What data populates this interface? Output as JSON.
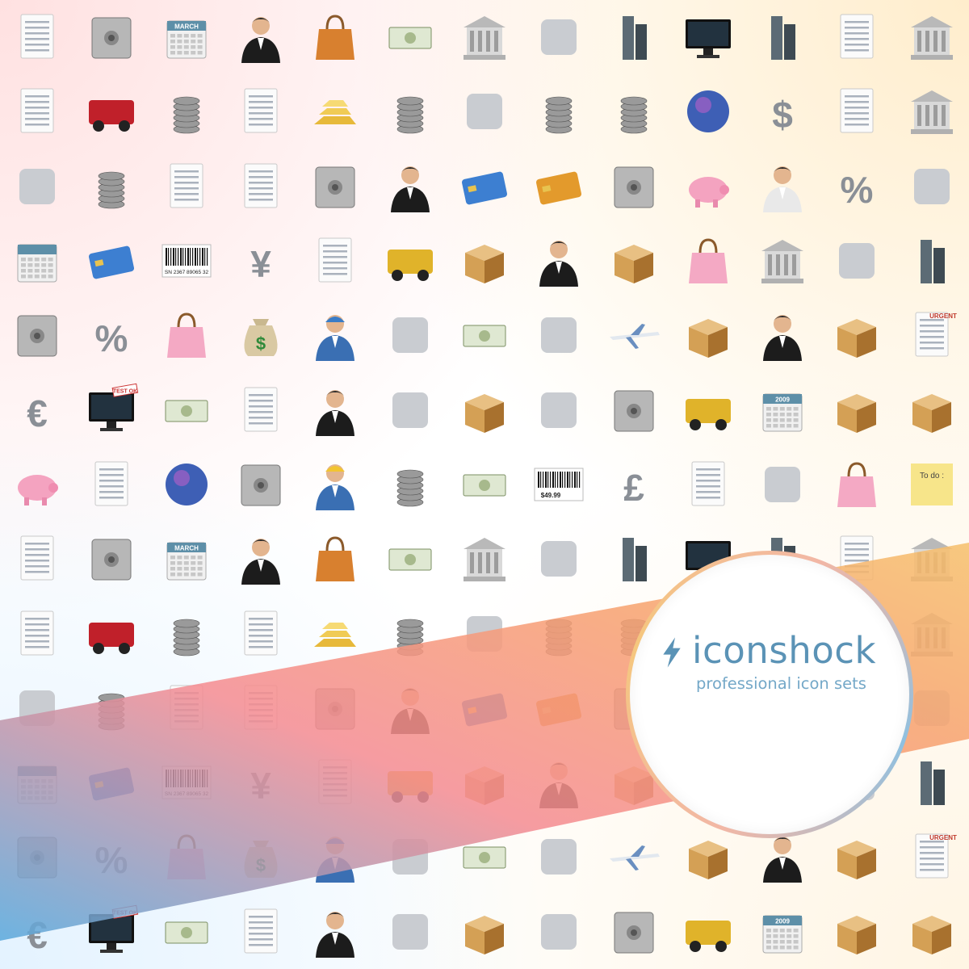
{
  "brand": {
    "name": "iconshock",
    "tagline": "professional icon sets",
    "accent_color": "#5b93b6",
    "ring_colors": [
      "#f2b7a5",
      "#f5c77e",
      "#8fc0e0"
    ]
  },
  "banner": {
    "colors": [
      "#5aa9dc",
      "#f58c92",
      "#f7a36f",
      "#f6c06c"
    ]
  },
  "grid": {
    "rows": 13,
    "columns": 13,
    "icons": [
      [
        "note-paper-icon",
        "atm-machine-icon",
        "march-calendar-icon",
        "businessman-icon",
        "handbag-icon",
        "wallet-icon",
        "bank-transfer-icon",
        "handshake-icon",
        "office-buildings-icon",
        "monitor-icon",
        "skyscraper-icon",
        "check-pen-icon",
        "bank-building-icon"
      ],
      [
        "pie-chart-report-icon",
        "double-decker-bus-icon",
        "clipboard-coins-icon",
        "signed-contract-icon",
        "gold-bars-icon",
        "money-coins-icon",
        "binder-icon",
        "coin-stack-icon",
        "dollar-coins-icon",
        "globe-envelope-icon",
        "dollar-sign-icon",
        "spreadsheet-icon",
        "office-desk-icon"
      ],
      [
        "hard-hat-icon",
        "document-stack-icon",
        "flowchart-document-icon",
        "calculator-sheet-icon",
        "safe-icon",
        "business-team-icon",
        "credit-card-blue-icon",
        "credit-card-gold-icon",
        "gold-vault-icon",
        "piggy-bank-coins-icon",
        "employee-icon",
        "percent-icon",
        "shopping-basket-icon"
      ],
      [
        "schedule-clock-icon",
        "credit-cards-icon",
        "barcode-icon",
        "yen-sign-icon",
        "shipping-invoice-icon",
        "dump-truck-icon",
        "cardboard-boxes-icon",
        "man-briefcase-icon",
        "balance-scale-box-icon",
        "shopping-bag-icon",
        "bank-money-icon",
        "balance-scale-icon",
        "factory-icon"
      ],
      [
        "filing-cabinet-icon",
        "money-percent-icon",
        "price-tag-icon",
        "money-bag-icon",
        "worker-icon",
        "joystick-icon",
        "cash-wallet-icon",
        "warehouse-icon",
        "airplane-icon",
        "checklist-box-icon",
        "man-suitcase-icon",
        "package-box-icon",
        "urgent-document-icon"
      ],
      [
        "euro-sign-icon",
        "test-ok-monitor-icon",
        "hand-money-icon",
        "clipboard-checklist-icon",
        "manager-icon",
        "treasure-chest-icon",
        "box-icon",
        "stopwatch-icon",
        "cash-register-icon",
        "chainsaw-icon",
        "calendar-2009-icon",
        "boxes-label-icon",
        "forklift-boxes-icon"
      ],
      [
        "piggy-bank-icon",
        "ledger-book-icon",
        "planet-icon",
        "cash-drawer-icon",
        "construction-worker-icon",
        "silver-coin-icon",
        "wallet-cash-icon",
        "price-barcode-icon",
        "pound-sign-icon",
        "invoice-envelope-icon",
        "abacus-icon",
        "pink-bag-icon",
        "todo-note-icon"
      ],
      [
        "note-paper-icon",
        "atm-machine-icon",
        "march-calendar-icon",
        "businessman-icon",
        "handbag-icon",
        "wallet-icon",
        "bank-transfer-icon",
        "handshake-icon",
        "office-buildings-icon",
        "monitor-icon",
        "skyscraper-icon",
        "check-pen-icon",
        "bank-building-icon"
      ],
      [
        "pie-chart-report-icon",
        "double-decker-bus-icon",
        "clipboard-coins-icon",
        "signed-contract-icon",
        "gold-bars-icon",
        "money-coins-icon",
        "binder-icon",
        "coin-stack-icon",
        "dollar-coins-icon",
        "globe-envelope-icon",
        "dollar-sign-icon",
        "spreadsheet-icon",
        "office-desk-icon"
      ],
      [
        "hard-hat-icon",
        "document-stack-icon",
        "flowchart-document-icon",
        "calculator-sheet-icon",
        "safe-icon",
        "business-team-icon",
        "credit-card-blue-icon",
        "credit-card-gold-icon",
        "gold-vault-icon",
        "piggy-bank-coins-icon",
        "employee-icon",
        "percent-icon",
        "shopping-basket-icon"
      ],
      [
        "schedule-clock-icon",
        "credit-cards-icon",
        "barcode-icon",
        "yen-sign-icon",
        "shipping-invoice-icon",
        "dump-truck-icon",
        "cardboard-boxes-icon",
        "man-briefcase-icon",
        "balance-scale-box-icon",
        "shopping-bag-icon",
        "bank-money-icon",
        "balance-scale-icon",
        "factory-icon"
      ],
      [
        "filing-cabinet-icon",
        "money-percent-icon",
        "price-tag-icon",
        "money-bag-icon",
        "worker-icon",
        "joystick-icon",
        "cash-wallet-icon",
        "warehouse-icon",
        "airplane-icon",
        "checklist-box-icon",
        "man-suitcase-icon",
        "package-box-icon",
        "urgent-document-icon"
      ],
      [
        "euro-sign-icon",
        "test-ok-monitor-icon",
        "hand-money-icon",
        "clipboard-checklist-icon",
        "manager-icon",
        "treasure-chest-icon",
        "box-icon",
        "stopwatch-icon",
        "cash-register-icon",
        "chainsaw-icon",
        "calendar-2009-icon",
        "boxes-label-icon",
        "forklift-boxes-icon"
      ]
    ],
    "icon_text": {
      "march-calendar-icon": "MARCH",
      "calendar-2009-icon": "2009",
      "test-ok-monitor-icon": "TEST OK",
      "urgent-document-icon": "URGENT",
      "todo-note-icon": "To do :",
      "barcode-icon": "SN 2367 89065 32",
      "price-barcode-icon": "$49.99",
      "dollar-sign-icon": "$",
      "percent-icon": "%",
      "money-percent-icon": "%",
      "yen-sign-icon": "¥",
      "euro-sign-icon": "€",
      "pound-sign-icon": "£",
      "money-bag-icon": "$"
    }
  }
}
